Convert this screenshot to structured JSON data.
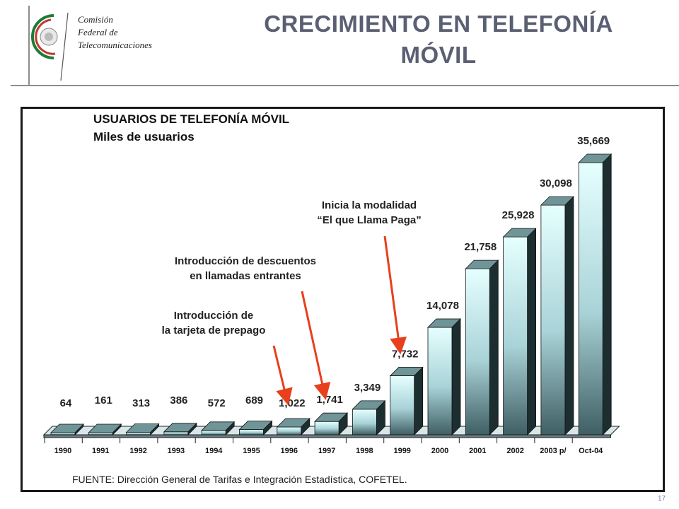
{
  "header": {
    "title_line1": "CRECIMIENTO EN TELEFONÍA",
    "title_line2": "MÓVIL",
    "logo": {
      "line1": "Comisión",
      "line2": "Federal de",
      "line3": "Telecomunicaciones"
    }
  },
  "chart_data": {
    "type": "bar",
    "title": "USUARIOS DE TELEFONÍA MÓVIL",
    "subtitle": "Miles de usuarios",
    "categories": [
      "1990",
      "1991",
      "1992",
      "1993",
      "1994",
      "1995",
      "1996",
      "1997",
      "1998",
      "1999",
      "2000",
      "2001",
      "2002",
      "2003 p/",
      "Oct-04"
    ],
    "values": [
      64,
      161,
      313,
      386,
      572,
      689,
      1022,
      1741,
      3349,
      7732,
      14078,
      21758,
      25928,
      30098,
      35669
    ],
    "data_labels": [
      "64",
      "161",
      "313",
      "386",
      "572",
      "689",
      "1,022",
      "1,741",
      "3,349",
      "7,732",
      "14,078",
      "21,758",
      "25,928",
      "30,098",
      "35,669"
    ],
    "ylim": [
      0,
      35669
    ],
    "grid": false,
    "legend": "none",
    "style": "3d-bar",
    "colors": {
      "bar_top": "#e6ffff",
      "bar_bottom": "#3f5f64",
      "arrow": "#e8401c"
    },
    "annotations": [
      {
        "line1": "Introducción de",
        "line2": "la tarjeta de prepago",
        "target": "1996"
      },
      {
        "line1": "Introducción de descuentos",
        "line2": "en llamadas entrantes",
        "target": "1997"
      },
      {
        "line1": "Inicia la modalidad",
        "line2": "“El que Llama Paga”",
        "target": "1999"
      }
    ]
  },
  "footer": {
    "source": "FUENTE: Dirección General de Tarifas e Integración Estadística, COFETEL.",
    "page_number": "17"
  }
}
